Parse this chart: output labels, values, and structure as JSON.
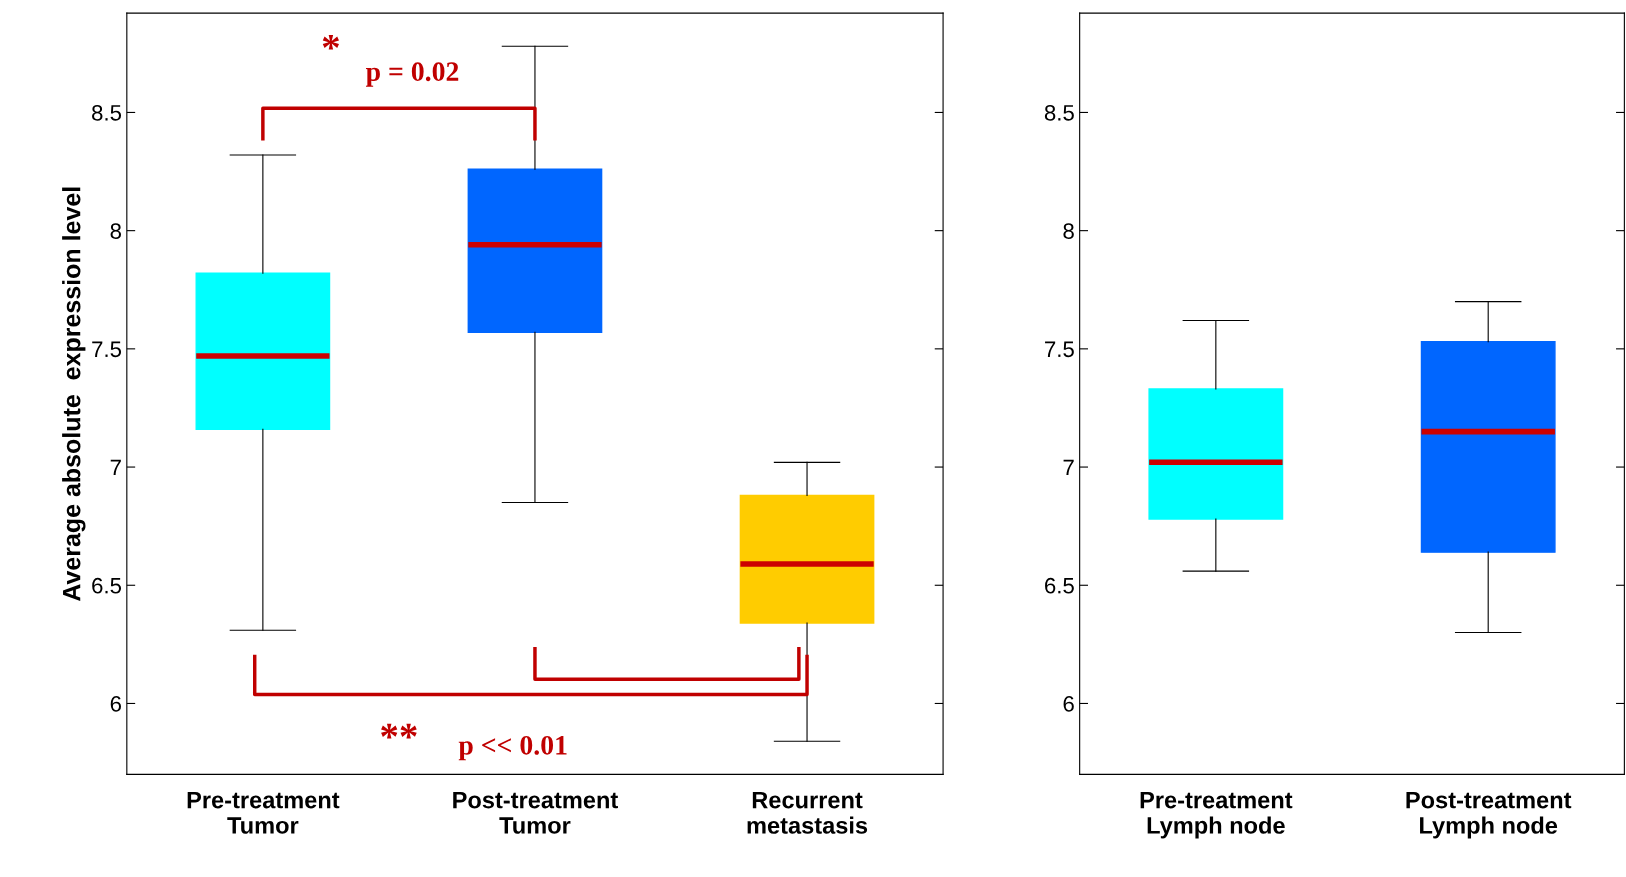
{
  "chart_data": [
    {
      "type": "box",
      "ylabel": "Average absolute  expression level",
      "categories": [
        "Pre-treatment\nTumor",
        "Post-treatment\nTumor",
        "Recurrent\nmetastasis"
      ],
      "colors": [
        "#00ffff",
        "#0066ff",
        "#ffcc00"
      ],
      "boxes": [
        {
          "low": 6.31,
          "q1": 7.16,
          "median": 7.47,
          "q3": 7.82,
          "high": 8.32
        },
        {
          "low": 6.85,
          "q1": 7.57,
          "median": 7.94,
          "q3": 8.26,
          "high": 8.78
        },
        {
          "low": 5.84,
          "q1": 6.34,
          "median": 6.59,
          "q3": 6.88,
          "high": 7.02
        }
      ],
      "ylim": [
        5.7,
        8.92
      ],
      "yticks": [
        6,
        6.5,
        7,
        7.5,
        8,
        8.5
      ],
      "grid": false,
      "annotations": [
        "*",
        "p = 0.02",
        "**",
        "p << 0.01"
      ]
    },
    {
      "type": "box",
      "categories": [
        "Pre-treatment\nLymph node",
        "Post-treatment\nLymph node"
      ],
      "colors": [
        "#00ffff",
        "#0066ff"
      ],
      "boxes": [
        {
          "low": 6.56,
          "q1": 6.78,
          "median": 7.02,
          "q3": 7.33,
          "high": 7.62
        },
        {
          "low": 6.3,
          "q1": 6.64,
          "median": 7.15,
          "q3": 7.53,
          "high": 7.7
        }
      ],
      "ylim": [
        5.7,
        8.92
      ],
      "yticks": [
        6,
        6.5,
        7,
        7.5,
        8,
        8.5
      ],
      "grid": false
    }
  ]
}
